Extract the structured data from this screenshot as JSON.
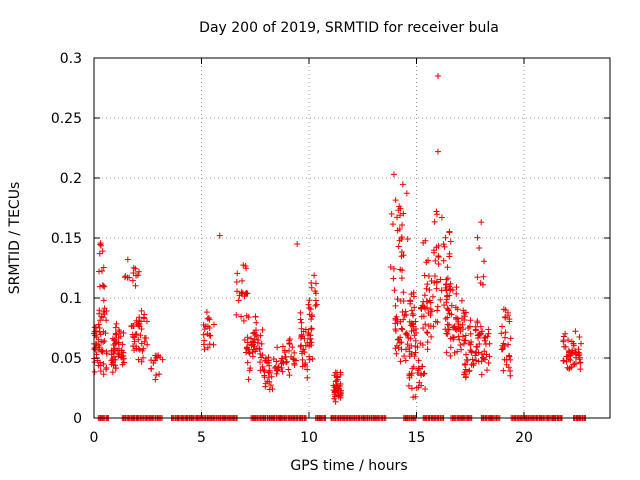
{
  "chart_data": {
    "type": "scatter",
    "title": "Day 200 of 2019, SRMTID for receiver bula",
    "xlabel": "GPS time / hours",
    "ylabel": "SRMTID / TECUs",
    "xlim": [
      0,
      24
    ],
    "ylim": [
      0,
      0.3
    ],
    "xticks": [
      0,
      5,
      10,
      15,
      20
    ],
    "yticks": [
      0,
      0.05,
      0.1,
      0.15,
      0.2,
      0.25,
      0.3
    ],
    "xtick_labels": [
      "0",
      "5",
      "10",
      "15",
      "20"
    ],
    "ytick_labels": [
      "0",
      "0.05",
      "0.1",
      "0.15",
      "0.2",
      "0.25",
      "0.3"
    ],
    "grid": true,
    "marker": "+",
    "color": "#ee0000",
    "series": [
      {
        "name": "SRMTID",
        "clusters": [
          {
            "x": [
              0.0,
              0.6
            ],
            "y": [
              0.03,
              0.1
            ],
            "n": 55
          },
          {
            "x": [
              0.2,
              0.55
            ],
            "y": [
              0.1,
              0.17
            ],
            "n": 12
          },
          {
            "x": [
              0.8,
              1.4
            ],
            "y": [
              0.03,
              0.085
            ],
            "n": 55
          },
          {
            "x": [
              1.4,
              1.7
            ],
            "y": [
              0.1,
              0.155
            ],
            "n": 5
          },
          {
            "x": [
              1.7,
              2.5
            ],
            "y": [
              0.04,
              0.1
            ],
            "n": 45
          },
          {
            "x": [
              1.8,
              2.1
            ],
            "y": [
              0.1,
              0.135
            ],
            "n": 8
          },
          {
            "x": [
              2.5,
              3.2
            ],
            "y": [
              0.03,
              0.06
            ],
            "n": 15
          },
          {
            "x": [
              5.1,
              5.6
            ],
            "y": [
              0.05,
              0.09
            ],
            "n": 20
          },
          {
            "x": [
              6.6,
              7.2
            ],
            "y": [
              0.07,
              0.145
            ],
            "n": 20
          },
          {
            "x": [
              7.0,
              7.9
            ],
            "y": [
              0.03,
              0.09
            ],
            "n": 50
          },
          {
            "x": [
              7.9,
              8.6
            ],
            "y": [
              0.02,
              0.06
            ],
            "n": 35
          },
          {
            "x": [
              8.7,
              9.4
            ],
            "y": [
              0.03,
              0.07
            ],
            "n": 30
          },
          {
            "x": [
              9.6,
              10.2
            ],
            "y": [
              0.03,
              0.1
            ],
            "n": 45
          },
          {
            "x": [
              10.0,
              10.4
            ],
            "y": [
              0.06,
              0.14
            ],
            "n": 15
          },
          {
            "x": [
              11.1,
              11.5
            ],
            "y": [
              0.012,
              0.045
            ],
            "n": 40
          },
          {
            "x": [
              13.8,
              14.6
            ],
            "y": [
              0.1,
              0.2
            ],
            "n": 30
          },
          {
            "x": [
              14.0,
              15.0
            ],
            "y": [
              0.04,
              0.11
            ],
            "n": 70
          },
          {
            "x": [
              14.6,
              15.4
            ],
            "y": [
              0.015,
              0.07
            ],
            "n": 35
          },
          {
            "x": [
              15.2,
              15.8
            ],
            "y": [
              0.05,
              0.15
            ],
            "n": 40
          },
          {
            "x": [
              15.8,
              16.6
            ],
            "y": [
              0.06,
              0.19
            ],
            "n": 50
          },
          {
            "x": [
              16.3,
              17.3
            ],
            "y": [
              0.04,
              0.12
            ],
            "n": 60
          },
          {
            "x": [
              17.2,
              18.4
            ],
            "y": [
              0.03,
              0.09
            ],
            "n": 70
          },
          {
            "x": [
              17.8,
              18.2
            ],
            "y": [
              0.1,
              0.17
            ],
            "n": 8
          },
          {
            "x": [
              18.9,
              19.4
            ],
            "y": [
              0.03,
              0.1
            ],
            "n": 30
          },
          {
            "x": [
              21.8,
              22.7
            ],
            "y": [
              0.03,
              0.08
            ],
            "n": 50
          }
        ],
        "outliers": [
          {
            "x": 16.0,
            "y": 0.285
          },
          {
            "x": 16.0,
            "y": 0.222
          },
          {
            "x": 5.85,
            "y": 0.152
          },
          {
            "x": 9.45,
            "y": 0.145
          },
          {
            "x": 13.95,
            "y": 0.203
          }
        ],
        "zero_baseline": {
          "segments": [
            [
              0.2,
              0.7
            ],
            [
              1.3,
              3.2
            ],
            [
              3.6,
              6.7
            ],
            [
              7.3,
              9.9
            ],
            [
              10.3,
              10.8
            ],
            [
              11.0,
              13.6
            ],
            [
              14.4,
              15.0
            ],
            [
              15.3,
              16.3
            ],
            [
              16.6,
              17.6
            ],
            [
              18.0,
              18.9
            ],
            [
              19.4,
              21.8
            ],
            [
              22.3,
              22.9
            ]
          ],
          "n": 340
        }
      }
    ]
  }
}
